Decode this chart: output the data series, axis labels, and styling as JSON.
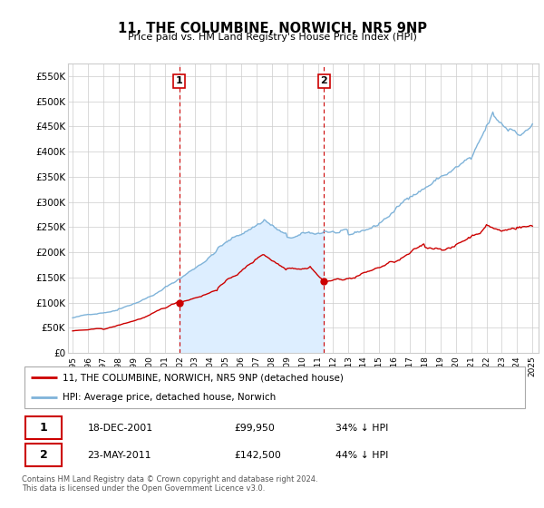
{
  "title": "11, THE COLUMBINE, NORWICH, NR5 9NP",
  "subtitle": "Price paid vs. HM Land Registry's House Price Index (HPI)",
  "legend_line1": "11, THE COLUMBINE, NORWICH, NR5 9NP (detached house)",
  "legend_line2": "HPI: Average price, detached house, Norwich",
  "footnote1": "Contains HM Land Registry data © Crown copyright and database right 2024.",
  "footnote2": "This data is licensed under the Open Government Licence v3.0.",
  "annotation1_date": "18-DEC-2001",
  "annotation1_price": "£99,950",
  "annotation1_hpi": "34% ↓ HPI",
  "annotation2_date": "23-MAY-2011",
  "annotation2_price": "£142,500",
  "annotation2_hpi": "44% ↓ HPI",
  "property_color": "#cc0000",
  "hpi_color": "#7fb3d9",
  "hpi_fill_color": "#ddeeff",
  "vline_color": "#cc0000",
  "annotation_box_color": "#cc0000",
  "grid_color": "#cccccc",
  "ylim": [
    0,
    575000
  ],
  "ytick_labels": [
    "£0",
    "£50K",
    "£100K",
    "£150K",
    "£200K",
    "£250K",
    "£300K",
    "£350K",
    "£400K",
    "£450K",
    "£500K",
    "£550K"
  ],
  "sale1_year": 2001.96,
  "sale1_value": 99950,
  "sale2_year": 2011.39,
  "sale2_value": 142500,
  "xmin": 1994.7,
  "xmax": 2025.4
}
